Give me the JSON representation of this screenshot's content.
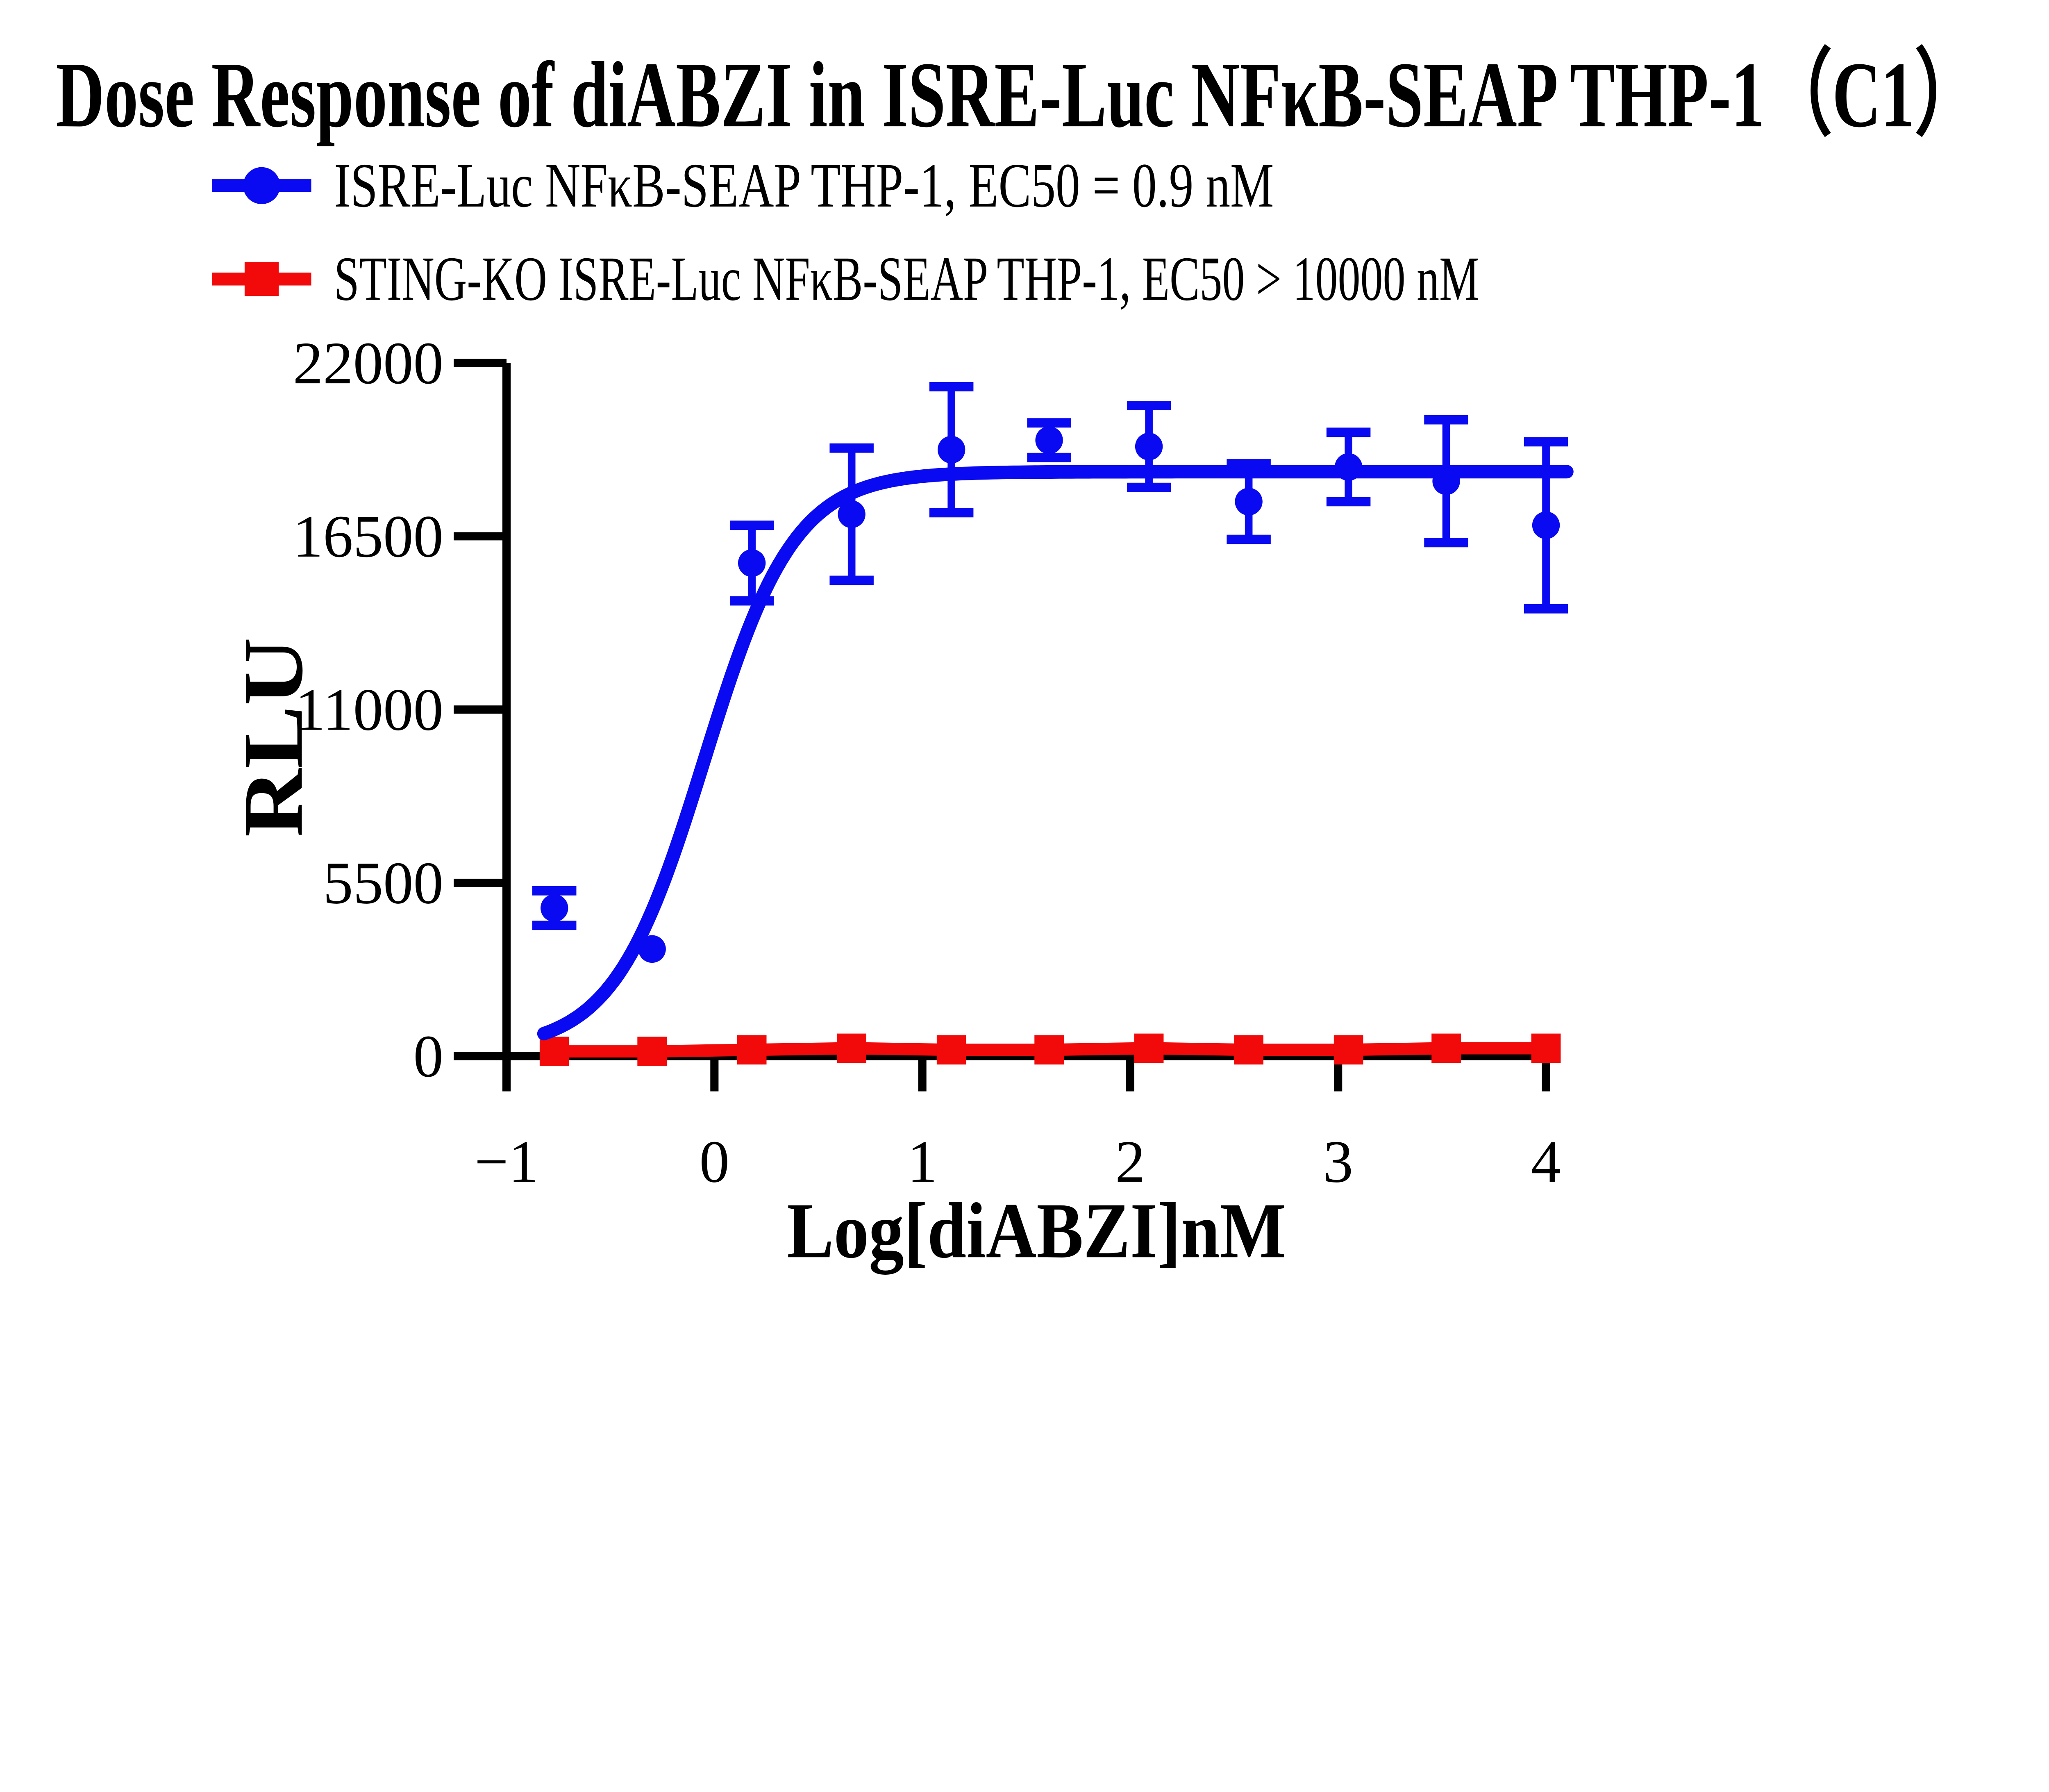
{
  "title": "Dose Response of diABZI in ISRE-Luc NFκB-SEAP THP-1（C1）",
  "colors": {
    "series1": "#0909F2",
    "series2": "#F20909",
    "axis": "#000000",
    "background": "#ffffff"
  },
  "legend": [
    {
      "label": "ISRE-Luc NFκB-SEAP THP-1, EC50 = 0.9 nM",
      "marker": "circle",
      "color": "#0909F2"
    },
    {
      "label": "STING-KO ISRE-Luc NFκB-SEAP THP-1, EC50 > 10000 nM",
      "marker": "square",
      "color": "#F20909"
    }
  ],
  "chart_data": {
    "type": "scatter",
    "title": "Dose Response of diABZI in ISRE-Luc NFκB-SEAP THP-1（C1）",
    "xlabel": "Log[diABZI]nM",
    "ylabel": "RLU",
    "xlim": [
      -1,
      4.1
    ],
    "ylim": [
      0,
      22000
    ],
    "x_ticks": [
      -1,
      0,
      1,
      2,
      3,
      4
    ],
    "y_ticks": [
      0,
      5500,
      11000,
      16500,
      22000
    ],
    "grid": false,
    "legend_position": "top-left",
    "series": [
      {
        "name": "ISRE-Luc NFκB-SEAP THP-1",
        "ec50": "0.9 nM",
        "color": "#0909F2",
        "marker": "circle",
        "x": [
          -0.77,
          -0.3,
          0.18,
          0.66,
          1.14,
          1.61,
          2.09,
          2.57,
          3.05,
          3.52,
          4.0
        ],
        "y": [
          4700,
          3400,
          15650,
          17200,
          19250,
          19550,
          19350,
          17600,
          18700,
          18250,
          16850
        ],
        "yerr": [
          550,
          0,
          1200,
          2100,
          2000,
          550,
          1300,
          1200,
          1100,
          1950,
          2650
        ],
        "fit_4pl": {
          "bottom": 200,
          "top": 18550,
          "log_ec50": -0.05,
          "hill": 2.0
        }
      },
      {
        "name": "STING-KO ISRE-Luc NFκB-SEAP THP-1",
        "ec50": "> 10000 nM",
        "color": "#F20909",
        "marker": "square",
        "x": [
          -0.77,
          -0.3,
          0.18,
          0.66,
          1.14,
          1.61,
          2.09,
          2.57,
          3.05,
          3.52,
          4.0
        ],
        "y": [
          150,
          150,
          200,
          250,
          200,
          200,
          250,
          200,
          200,
          250,
          250
        ],
        "yerr": [
          0,
          0,
          0,
          0,
          0,
          0,
          0,
          0,
          0,
          0,
          0
        ]
      }
    ]
  }
}
